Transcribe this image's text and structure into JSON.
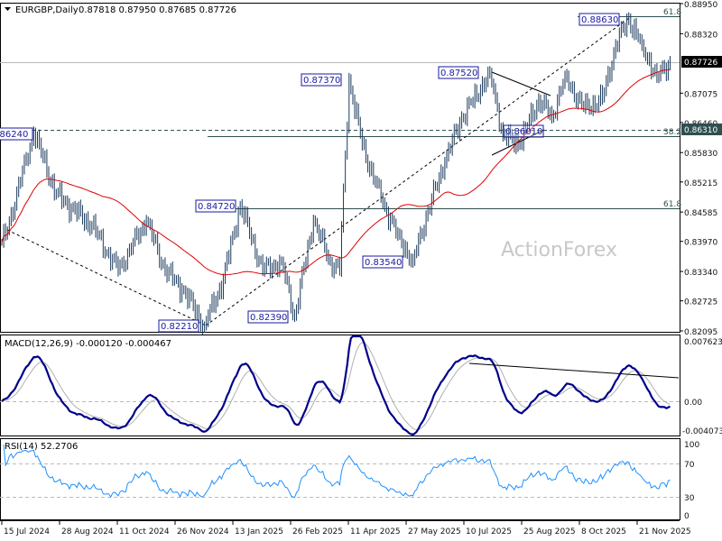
{
  "header": {
    "symbol": "EURGBP,Daily",
    "ohlc": "0.87818 0.87950 0.87685 0.87726"
  },
  "watermark": "ActionForex",
  "colors": {
    "bars": "#1b3a5c",
    "ma": "#e00000",
    "macd": "#00008b",
    "signal": "#b0b0b0",
    "rsi": "#1e90ff",
    "label": "#1a1aa0"
  },
  "chart_data": [
    {
      "type": "line",
      "title": "EURGBP,Daily",
      "note": "approximate swing points (bar index, price) of the daily OHLC series",
      "ylim": [
        0.82095,
        0.8895
      ],
      "yticks": [
        "0.88950",
        "0.88320",
        "0.87075",
        "0.86460",
        "0.85830",
        "0.85215",
        "0.84585",
        "0.83970",
        "0.83340",
        "0.82725",
        "0.82095"
      ],
      "current_price": "0.87726",
      "marker_price": "0.86310",
      "xticks": [
        "15 Jul 2024",
        "28 Aug 2024",
        "11 Oct 2024",
        "26 Nov 2024",
        "13 Jan 2025",
        "26 Feb 2025",
        "11 Apr 2025",
        "27 May 2025",
        "10 Jul 2025",
        "25 Aug 2025",
        "8 Oct 2025",
        "21 Nov 2025"
      ],
      "n_bars": 357,
      "waypoints": [
        [
          0,
          0.8395
        ],
        [
          2,
          0.8411
        ],
        [
          17,
          0.8625
        ],
        [
          29,
          0.8496
        ],
        [
          48,
          0.843
        ],
        [
          62,
          0.8336
        ],
        [
          77,
          0.844
        ],
        [
          87,
          0.8336
        ],
        [
          96,
          0.8298
        ],
        [
          108,
          0.8221
        ],
        [
          118,
          0.8317
        ],
        [
          127,
          0.8474
        ],
        [
          139,
          0.8336
        ],
        [
          149,
          0.8355
        ],
        [
          156,
          0.8239
        ],
        [
          166,
          0.844
        ],
        [
          175,
          0.8355
        ],
        [
          180,
          0.8336
        ],
        [
          185,
          0.8737
        ],
        [
          192,
          0.86
        ],
        [
          202,
          0.8487
        ],
        [
          211,
          0.8411
        ],
        [
          219,
          0.8354
        ],
        [
          226,
          0.8449
        ],
        [
          236,
          0.8563
        ],
        [
          245,
          0.8657
        ],
        [
          255,
          0.8714
        ],
        [
          260,
          0.8752
        ],
        [
          267,
          0.8619
        ],
        [
          276,
          0.8601
        ],
        [
          286,
          0.8695
        ],
        [
          293,
          0.8657
        ],
        [
          300,
          0.8742
        ],
        [
          310,
          0.8676
        ],
        [
          320,
          0.8695
        ],
        [
          327,
          0.8808
        ],
        [
          334,
          0.8863
        ],
        [
          341,
          0.8808
        ],
        [
          349,
          0.8742
        ],
        [
          356,
          0.8773
        ]
      ],
      "ma_period": 55,
      "swing_labels": [
        "0.86240",
        "0.84720",
        "0.82210",
        "0.82390",
        "0.87370",
        "0.83540",
        "0.87520",
        "0.86010",
        "0.88630"
      ],
      "fib_labels": [
        "61.8",
        "38.2",
        "61.8"
      ]
    },
    {
      "type": "line",
      "title": "MACD(12,26,9) -0.000120 -0.000467",
      "params": [
        12,
        26,
        9
      ],
      "macd": -0.00012,
      "signal": -0.000467,
      "ylim": [
        -0.004073,
        0.007623
      ],
      "yticks": [
        "0.007623",
        "0.00",
        "-0.004073"
      ]
    },
    {
      "type": "line",
      "title": "RSI(14) 52.2706",
      "period": 14,
      "value": 52.2706,
      "ylim": [
        0,
        100
      ],
      "yticks": [
        "100",
        "70",
        "30",
        "0"
      ]
    }
  ]
}
